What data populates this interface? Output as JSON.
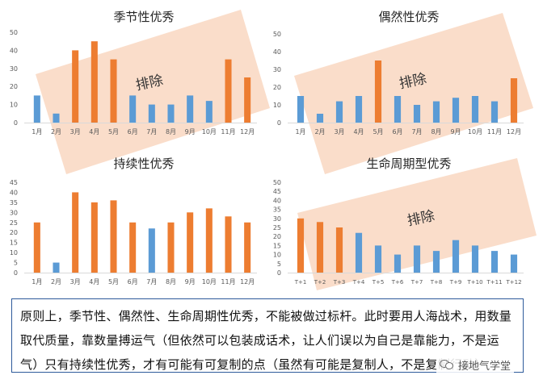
{
  "colors": {
    "blue": "#5b9bd5",
    "orange": "#ed7d31",
    "highlight": "#f8cbad",
    "axis": "#d9d9d9",
    "tick": "#595959"
  },
  "chart_data": [
    {
      "type": "bar",
      "title": "季节性优秀",
      "categories": [
        "1月",
        "2月",
        "3月",
        "4月",
        "5月",
        "6月",
        "7月",
        "8月",
        "9月",
        "10月",
        "11月",
        "12月"
      ],
      "values": [
        15,
        5,
        40,
        45,
        35,
        15,
        10,
        10,
        15,
        12,
        35,
        25
      ],
      "bar_colors": [
        "blue",
        "blue",
        "orange",
        "orange",
        "orange",
        "blue",
        "blue",
        "blue",
        "blue",
        "blue",
        "orange",
        "orange"
      ],
      "ylim": [
        0,
        50
      ],
      "yticks": [
        0,
        10,
        20,
        30,
        40,
        50
      ],
      "annotation": "排除"
    },
    {
      "type": "bar",
      "title": "偶然性优秀",
      "categories": [
        "1月",
        "2月",
        "3月",
        "4月",
        "5月",
        "6月",
        "7月",
        "8月",
        "9月",
        "10月",
        "11月",
        "12月"
      ],
      "values": [
        15,
        5,
        12,
        15,
        35,
        15,
        10,
        12,
        14,
        15,
        12,
        25
      ],
      "bar_colors": [
        "blue",
        "blue",
        "blue",
        "blue",
        "orange",
        "blue",
        "blue",
        "blue",
        "blue",
        "blue",
        "blue",
        "orange"
      ],
      "ylim": [
        0,
        50
      ],
      "yticks": [
        0,
        10,
        20,
        30,
        40,
        50
      ],
      "annotation": "排除"
    },
    {
      "type": "bar",
      "title": "持续性优秀",
      "categories": [
        "1月",
        "2月",
        "3月",
        "4月",
        "5月",
        "6月",
        "7月",
        "8月",
        "9月",
        "10月",
        "11月",
        "12月"
      ],
      "values": [
        25,
        5,
        40,
        35,
        36,
        25,
        22,
        25,
        30,
        32,
        28,
        25
      ],
      "bar_colors": [
        "orange",
        "blue",
        "orange",
        "orange",
        "orange",
        "orange",
        "blue",
        "orange",
        "orange",
        "orange",
        "orange",
        "orange"
      ],
      "ylim": [
        0,
        45
      ],
      "yticks": [
        0,
        5,
        10,
        15,
        20,
        25,
        30,
        35,
        40,
        45
      ]
    },
    {
      "type": "bar",
      "title": "生命周期型优秀",
      "categories": [
        "T+1",
        "T+2",
        "T+3",
        "T+4",
        "T+5",
        "T+6",
        "T+7",
        "T+8",
        "T+9",
        "T+10",
        "T+11",
        "T+12"
      ],
      "values": [
        30,
        28,
        25,
        22,
        15,
        10,
        15,
        12,
        18,
        15,
        12,
        10
      ],
      "bar_colors": [
        "orange",
        "orange",
        "orange",
        "blue",
        "blue",
        "blue",
        "blue",
        "blue",
        "blue",
        "blue",
        "blue",
        "blue"
      ],
      "ylim": [
        0,
        50
      ],
      "yticks": [
        0,
        5,
        10,
        15,
        20,
        25,
        30,
        35,
        40,
        45,
        50
      ],
      "annotation": "排除"
    }
  ],
  "caption": {
    "text": "原则上，季节性、偶然性、生命周期性优秀，不能被做过标杆。此时要用人海战术，用数量取代质量，靠数量搏运气（但依然可以包装成话术，让人们误以为自己是靠能力，不是运气）只有持续性优秀，才有可能有可复制的点（虽然有可能是复制人，不是复制行动）"
  },
  "watermark": {
    "text": "接地气学堂",
    "icon": "wechat-icon"
  }
}
